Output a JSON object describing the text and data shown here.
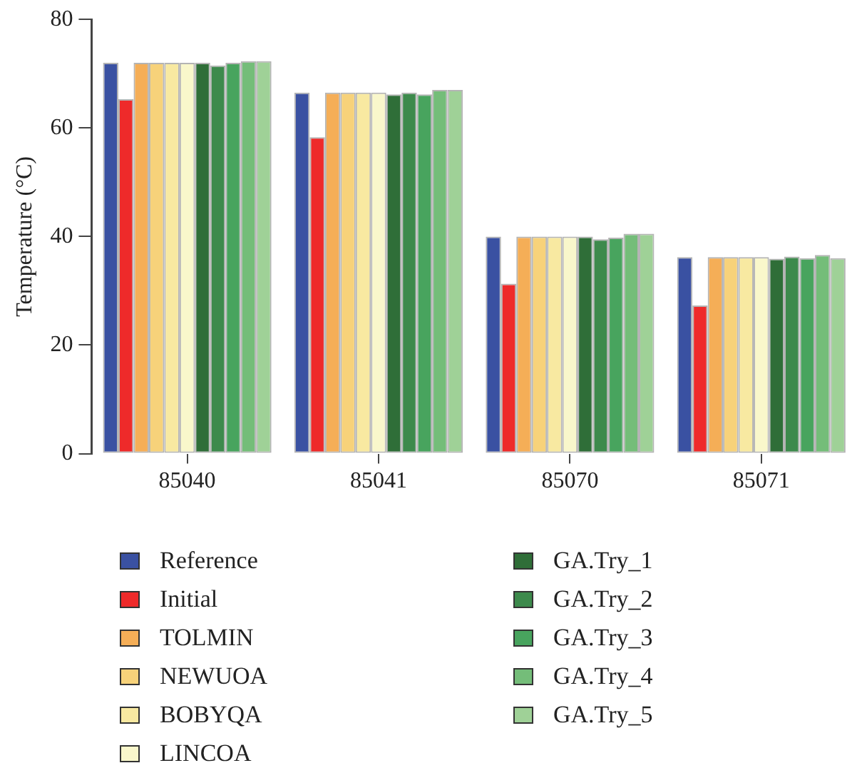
{
  "chart_data": {
    "type": "bar",
    "ylabel": "Temperature (°C)",
    "categories": [
      "85040",
      "85041",
      "85070",
      "85071"
    ],
    "ylim": [
      0,
      80
    ],
    "yticks": [
      0,
      20,
      40,
      60,
      80
    ],
    "grid": false,
    "legend": "bottom",
    "series": [
      {
        "name": "Reference",
        "color": "#3a51a2",
        "values": [
          72,
          66.5,
          40,
          36.2
        ]
      },
      {
        "name": "Initial",
        "color": "#ee2a2a",
        "values": [
          65.3,
          58.3,
          31.3,
          27.3
        ]
      },
      {
        "name": "TOLMIN",
        "color": "#f5ae57",
        "values": [
          72,
          66.5,
          40,
          36.2
        ]
      },
      {
        "name": "NEWUOA",
        "color": "#f7d27a",
        "values": [
          72,
          66.5,
          40,
          36.2
        ]
      },
      {
        "name": "BOBYQA",
        "color": "#f8e9a1",
        "values": [
          72,
          66.5,
          40,
          36.2
        ]
      },
      {
        "name": "LINCOA",
        "color": "#f9f7cb",
        "values": [
          72,
          66.5,
          40,
          36.2
        ]
      },
      {
        "name": "GA.Try_1",
        "color": "#2f6e38",
        "values": [
          72,
          66.2,
          40,
          35.9
        ]
      },
      {
        "name": "GA.Try_2",
        "color": "#3d8a4c",
        "values": [
          71.5,
          66.5,
          39.5,
          36.3
        ]
      },
      {
        "name": "GA.Try_3",
        "color": "#48a45e",
        "values": [
          72,
          66.2,
          39.8,
          36
        ]
      },
      {
        "name": "GA.Try_4",
        "color": "#74bd79",
        "values": [
          72.3,
          67,
          40.5,
          36.6
        ]
      },
      {
        "name": "GA.Try_5",
        "color": "#9fd197",
        "values": [
          72.3,
          67,
          40.5,
          36
        ]
      }
    ]
  }
}
